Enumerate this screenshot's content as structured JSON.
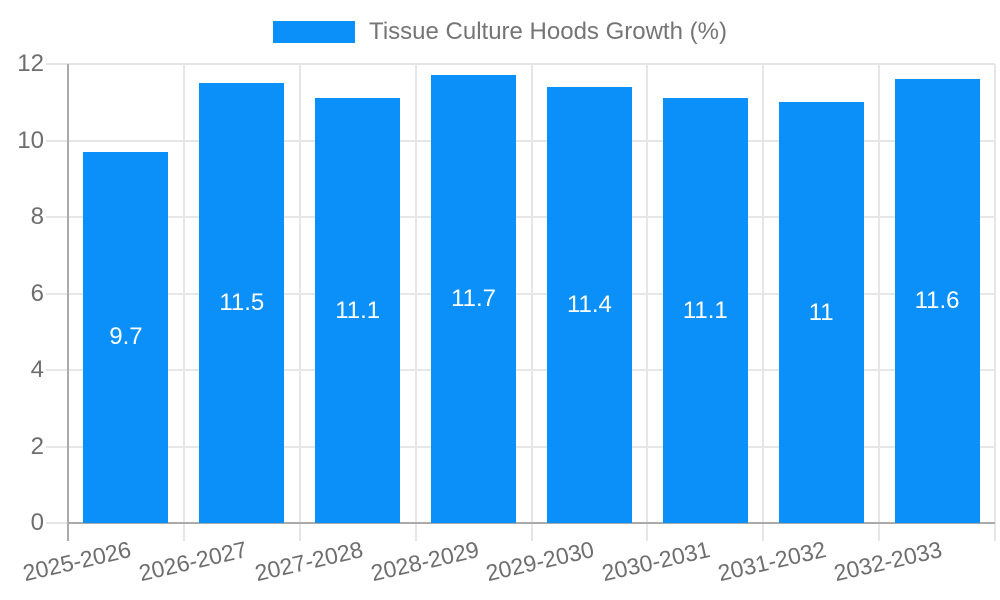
{
  "chart_data": {
    "type": "bar",
    "title": "Tissue Culture Hoods Growth (%)",
    "categories": [
      "2025-2026",
      "2026-2027",
      "2027-2028",
      "2028-2029",
      "2029-2030",
      "2030-2031",
      "2031-2032",
      "2032-2033"
    ],
    "values": [
      9.7,
      11.5,
      11.1,
      11.7,
      11.4,
      11.1,
      11,
      11.6
    ],
    "value_labels": [
      "9.7",
      "11.5",
      "11.1",
      "11.7",
      "11.4",
      "11.1",
      "11",
      "11.6"
    ],
    "xlabel": "",
    "ylabel": "",
    "ylim": [
      0,
      12
    ],
    "yticks": [
      0,
      2,
      4,
      6,
      8,
      10,
      12
    ],
    "grid": true,
    "legend_position": "top",
    "x_label_rotation_deg": -13
  },
  "colors": {
    "bar": "#0a90f8",
    "bar_label": "#ffffff",
    "grid": "#e6e6e6",
    "axis": "#ababab",
    "tick_text": "#6e6e6e",
    "legend_text": "#757575",
    "background": "#ffffff"
  }
}
